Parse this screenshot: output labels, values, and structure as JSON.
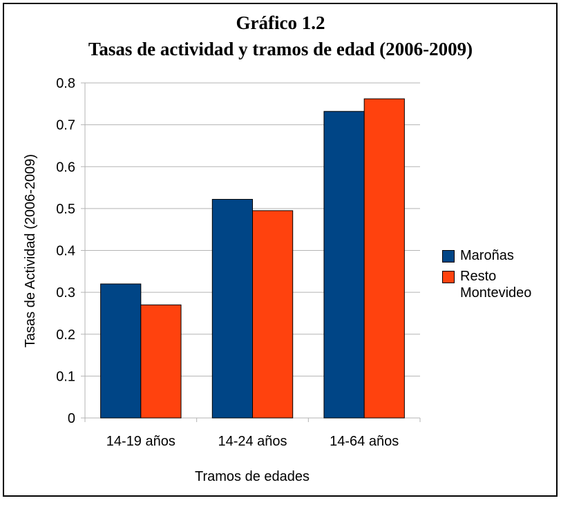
{
  "chart_data": {
    "type": "bar",
    "title": "Gráfico 1.2",
    "subtitle": "Tasas de actividad y tramos de edad (2006-2009)",
    "x_label": "Tramos de edades",
    "y_label": "Tasas de Actividad (2006-2009)",
    "categories": [
      "14-19 años",
      "14-24 años",
      "14-64 años"
    ],
    "series": [
      {
        "name": "Maroñas",
        "color": "#004586",
        "values": [
          0.32,
          0.522,
          0.732
        ]
      },
      {
        "name": "Resto Montevideo",
        "color": "#ff420e",
        "values": [
          0.27,
          0.495,
          0.762
        ]
      }
    ],
    "ylim": [
      0,
      0.8
    ],
    "yticks": [
      0,
      0.1,
      0.2,
      0.3,
      0.4,
      0.5,
      0.6,
      0.7,
      0.8
    ],
    "grid": true,
    "legend": "right"
  }
}
